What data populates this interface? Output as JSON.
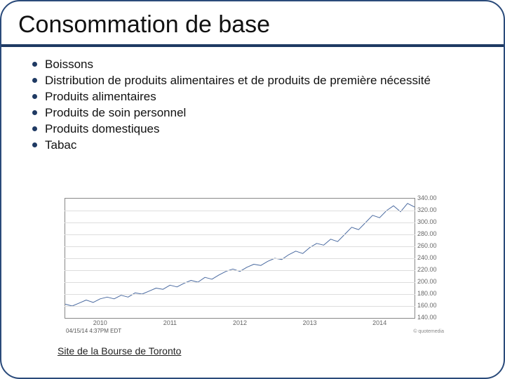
{
  "title": "Consommation de base",
  "bullets": [
    "Boissons",
    "Distribution de produits alimentaires et de produits de première nécessité",
    "Produits alimentaires",
    "Produits de soin personnel",
    "Produits domestiques",
    "Tabac"
  ],
  "footer_link": "Site de la Bourse de Toronto",
  "chart": {
    "type": "line",
    "ylim": [
      140,
      340
    ],
    "ytick_step": 20,
    "yticks": [
      140,
      160,
      180,
      200,
      220,
      240,
      260,
      280,
      300,
      320,
      340
    ],
    "ytick_labels": [
      "140.00",
      "160.00",
      "180.00",
      "200.00",
      "220.00",
      "240.00",
      "260.00",
      "280.00",
      "300.00",
      "320.00",
      "340.00"
    ],
    "xticks": [
      0,
      0.2,
      0.4,
      0.6,
      0.8,
      1.0
    ],
    "xtick_labels": [
      "2010",
      "2011",
      "2012",
      "2013",
      "2014"
    ],
    "xtick_positions": [
      0.1,
      0.3,
      0.5,
      0.7,
      0.9
    ],
    "line_color": "#4a6aa0",
    "line_width": 1,
    "grid_color": "#dddddd",
    "border_color": "#888888",
    "background_color": "#ffffff",
    "label_fontsize": 9,
    "label_color": "#666666",
    "timestamp": "04/15/14 4:37PM EDT",
    "attribution": "© quotemedia",
    "series": [
      [
        0.0,
        163
      ],
      [
        0.02,
        160
      ],
      [
        0.04,
        165
      ],
      [
        0.06,
        170
      ],
      [
        0.08,
        166
      ],
      [
        0.1,
        172
      ],
      [
        0.12,
        175
      ],
      [
        0.14,
        172
      ],
      [
        0.16,
        178
      ],
      [
        0.18,
        175
      ],
      [
        0.2,
        182
      ],
      [
        0.22,
        180
      ],
      [
        0.24,
        185
      ],
      [
        0.26,
        190
      ],
      [
        0.28,
        188
      ],
      [
        0.3,
        195
      ],
      [
        0.32,
        192
      ],
      [
        0.34,
        198
      ],
      [
        0.36,
        203
      ],
      [
        0.38,
        200
      ],
      [
        0.4,
        208
      ],
      [
        0.42,
        205
      ],
      [
        0.44,
        212
      ],
      [
        0.46,
        218
      ],
      [
        0.48,
        222
      ],
      [
        0.5,
        218
      ],
      [
        0.52,
        225
      ],
      [
        0.54,
        230
      ],
      [
        0.56,
        228
      ],
      [
        0.58,
        235
      ],
      [
        0.6,
        240
      ],
      [
        0.62,
        238
      ],
      [
        0.64,
        246
      ],
      [
        0.66,
        252
      ],
      [
        0.68,
        248
      ],
      [
        0.7,
        258
      ],
      [
        0.72,
        265
      ],
      [
        0.74,
        262
      ],
      [
        0.76,
        272
      ],
      [
        0.78,
        268
      ],
      [
        0.8,
        280
      ],
      [
        0.82,
        292
      ],
      [
        0.84,
        288
      ],
      [
        0.86,
        300
      ],
      [
        0.88,
        312
      ],
      [
        0.9,
        308
      ],
      [
        0.92,
        320
      ],
      [
        0.94,
        328
      ],
      [
        0.96,
        318
      ],
      [
        0.98,
        332
      ],
      [
        1.0,
        326
      ]
    ]
  }
}
